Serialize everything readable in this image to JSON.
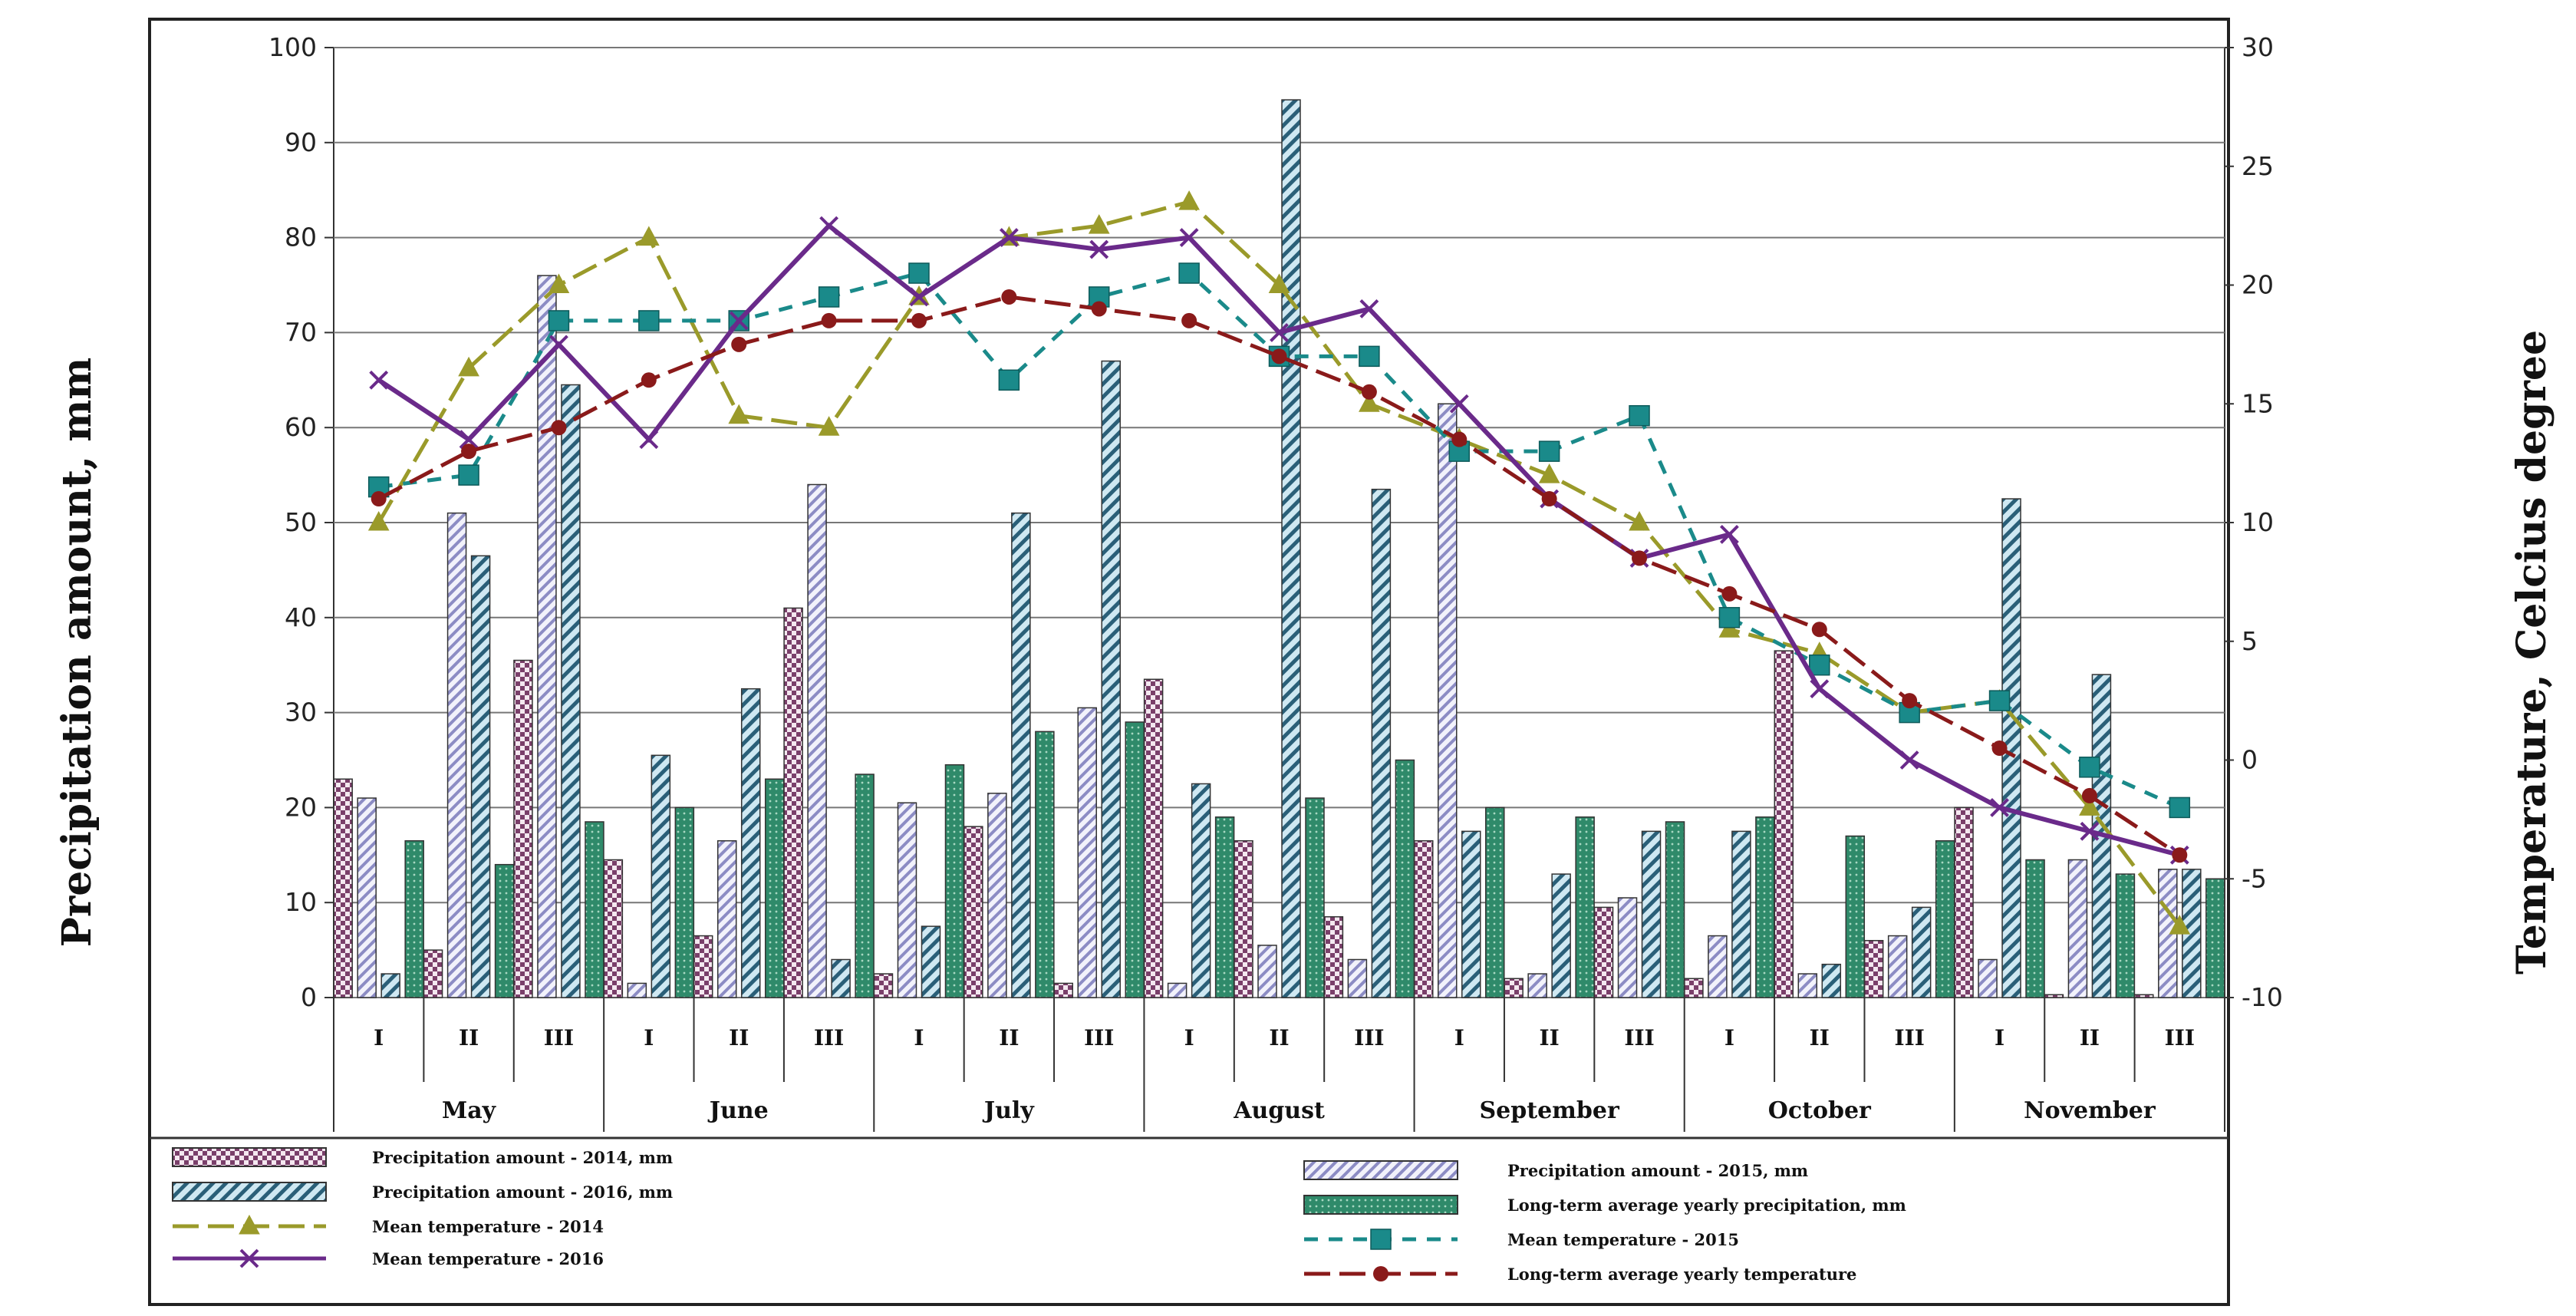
{
  "chart_data": {
    "type": "bar+line",
    "ylabel_left": "Precipitation  amount,  mm",
    "ylabel_right": "Temperature,  Celcius  degree",
    "ylim_left": [
      0,
      100
    ],
    "ylim_right": [
      -10,
      30
    ],
    "yticks_left": [
      "0",
      "10",
      "20",
      "30",
      "40",
      "50",
      "60",
      "70",
      "80",
      "90",
      "100"
    ],
    "yticks_right": [
      "-10",
      "-5",
      "0",
      "5",
      "10",
      "15",
      "20",
      "25",
      "30"
    ],
    "decades": [
      "I",
      "II",
      "III",
      "I",
      "II",
      "III",
      "I",
      "II",
      "III",
      "I",
      "II",
      "III",
      "I",
      "II",
      "III",
      "I",
      "II",
      "III",
      "I",
      "II",
      "III"
    ],
    "months": [
      "May",
      "June",
      "July",
      "August",
      "September",
      "October",
      "November"
    ],
    "bar_series": [
      {
        "name": "Precipitation amount - 2014, mm",
        "color": "#7a3f6a",
        "pattern": "checker",
        "values": [
          23,
          5,
          35.5,
          14.5,
          6.5,
          41,
          2.5,
          18,
          1.5,
          33.5,
          16.5,
          8.5,
          16.5,
          2,
          9.5,
          2,
          36.5,
          6,
          20,
          0.3,
          0.3
        ]
      },
      {
        "name": "Precipitation amount - 2015, mm",
        "color": "#8c8cc4",
        "pattern": "diag-light",
        "values": [
          21,
          51,
          76,
          1.5,
          16.5,
          54,
          20.5,
          21.5,
          30.5,
          1.5,
          5.5,
          4,
          62.5,
          2.5,
          10.5,
          6.5,
          2.5,
          6.5,
          4,
          14.5,
          13.5
        ]
      },
      {
        "name": "Precipitation amount - 2016, mm",
        "color": "#2a5f78",
        "pattern": "diag-teal",
        "values": [
          2.5,
          46.5,
          64.5,
          25.5,
          32.5,
          4,
          7.5,
          51,
          67,
          22.5,
          94.5,
          53.5,
          17.5,
          13,
          17.5,
          17.5,
          3.5,
          9.5,
          52.5,
          34,
          13.5
        ]
      },
      {
        "name": "Long-term average yearly precipitation, mm",
        "color": "#2f8a6a",
        "pattern": "dots",
        "values": [
          16.5,
          14,
          18.5,
          20,
          23,
          23.5,
          24.5,
          28,
          29,
          19,
          21,
          25,
          20,
          19,
          18.5,
          19,
          17,
          16.5,
          14.5,
          13,
          12.5
        ]
      }
    ],
    "line_series": [
      {
        "name": "Mean temperature - 2014",
        "color": "#9a9a2a",
        "marker": "triangle",
        "dash": "long-dash",
        "values": [
          10,
          16.5,
          20,
          22,
          14.5,
          14,
          19.5,
          22,
          22.5,
          23.5,
          20,
          15,
          13.5,
          12,
          10,
          5.5,
          4.5,
          2,
          2.5,
          -2,
          -7
        ]
      },
      {
        "name": "Mean temperature - 2015",
        "color": "#1a8a8a",
        "marker": "square",
        "dash": "dash",
        "values": [
          11.5,
          12,
          18.5,
          18.5,
          18.5,
          19.5,
          20.5,
          16,
          19.5,
          20.5,
          17,
          17,
          13,
          13,
          14.5,
          6,
          4,
          2,
          2.5,
          -0.3,
          -2
        ]
      },
      {
        "name": "Mean temperature - 2016",
        "color": "#6a2a8a",
        "marker": "x",
        "dash": "solid",
        "values": [
          16,
          13.5,
          17.5,
          13.5,
          18.5,
          22.5,
          19.5,
          22,
          21.5,
          22,
          18,
          19,
          15,
          11,
          8.5,
          9.5,
          3,
          0,
          -2,
          -3,
          -4
        ]
      },
      {
        "name": "Long-term average yearly temperature",
        "color": "#8a1a1a",
        "marker": "circle",
        "dash": "long-dash",
        "values": [
          11,
          13,
          14,
          16,
          17.5,
          18.5,
          18.5,
          19.5,
          19,
          18.5,
          17,
          15.5,
          13.5,
          11,
          8.5,
          7,
          5.5,
          2.5,
          0.5,
          -1.5,
          -4
        ]
      }
    ],
    "legend": {
      "left": [
        "Precipitation amount - 2014, mm",
        "Precipitation amount - 2016, mm",
        "Mean temperature - 2014",
        "Mean temperature - 2016"
      ],
      "right": [
        "Precipitation amount - 2015, mm",
        "Long-term average yearly precipitation, mm",
        "Mean temperature - 2015",
        "Long-term average yearly temperature"
      ]
    }
  }
}
